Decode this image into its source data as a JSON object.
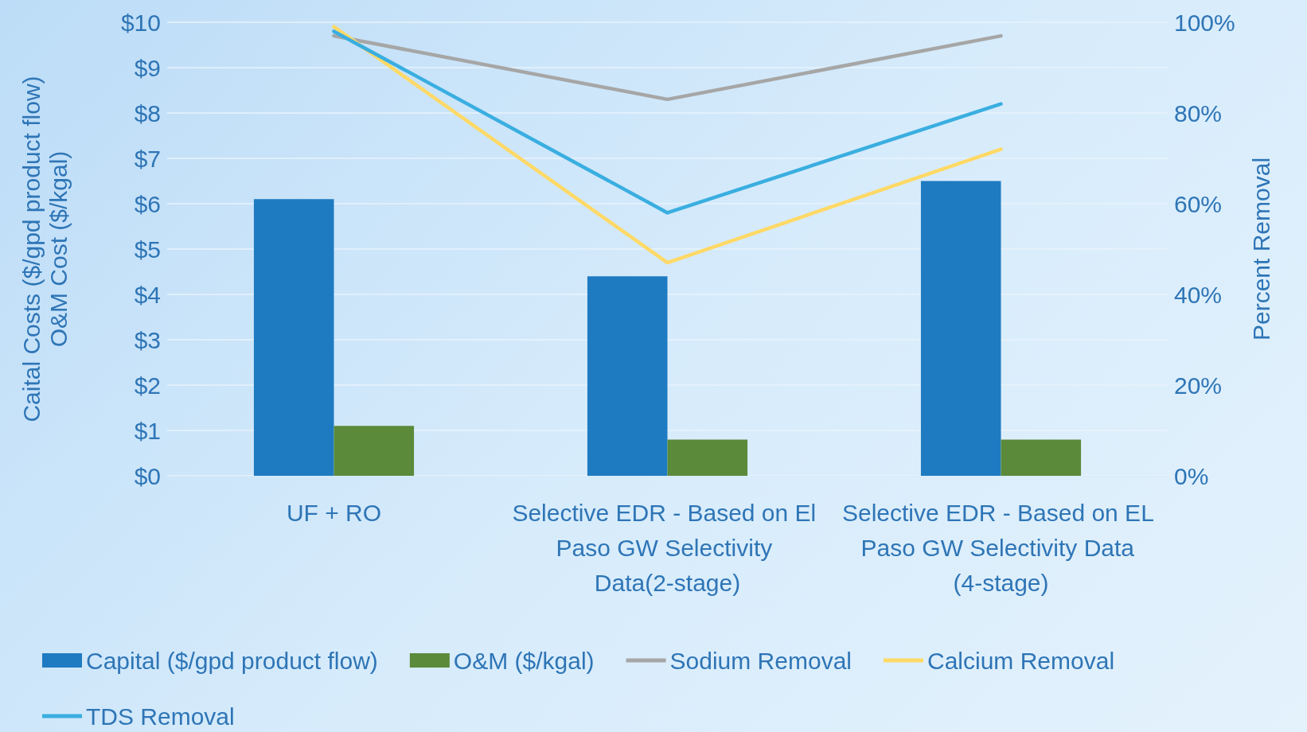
{
  "chart_data": {
    "type": "bar",
    "categories": [
      "UF + RO",
      "Selective EDR - Based on El Paso GW Selectivity Data(2-stage)",
      "Selective EDR - Based on EL Paso GW Selectivity Data (4-stage)"
    ],
    "series": [
      {
        "name": "Capital ($/gpd product flow)",
        "color": "#1f7bc1",
        "values": [
          6.1,
          4.4,
          6.5
        ]
      },
      {
        "name": "O&M ($/kgal)",
        "color": "#5b8a3a",
        "values": [
          1.1,
          0.8,
          0.8
        ]
      },
      {
        "name": "Sodium Removal",
        "type": "line",
        "axis": "y2",
        "color": "#a6a6a6",
        "values": [
          97,
          83,
          97
        ]
      },
      {
        "name": "Calcium Removal",
        "type": "line",
        "axis": "y2",
        "color": "#ffd966",
        "values": [
          99,
          47,
          72
        ]
      },
      {
        "name": "TDS Removal",
        "type": "line",
        "axis": "y2",
        "color": "#3aaee0",
        "values": [
          98,
          58,
          82
        ]
      }
    ],
    "ylabel": "Caital Costs ($/gpd product flow)\nO&M Cost ($/kgal)",
    "y2label": "Percent Removal",
    "ylim": [
      0,
      10
    ],
    "yticks": [
      {
        "value": 0,
        "label": "$0"
      },
      {
        "value": 1,
        "label": "$1"
      },
      {
        "value": 2,
        "label": "$2"
      },
      {
        "value": 3,
        "label": "$3"
      },
      {
        "value": 4,
        "label": "$4"
      },
      {
        "value": 5,
        "label": "$5"
      },
      {
        "value": 6,
        "label": "$6"
      },
      {
        "value": 7,
        "label": "$7"
      },
      {
        "value": 8,
        "label": "$8"
      },
      {
        "value": 9,
        "label": "$9"
      },
      {
        "value": 10,
        "label": "$10"
      }
    ],
    "y2lim": [
      0,
      100
    ],
    "y2ticks": [
      {
        "value": 0,
        "label": "0%"
      },
      {
        "value": 20,
        "label": "20%"
      },
      {
        "value": 40,
        "label": "40%"
      },
      {
        "value": 60,
        "label": "60%"
      },
      {
        "value": 80,
        "label": "80%"
      },
      {
        "value": 100,
        "label": "100%"
      }
    ],
    "grid": "y",
    "legend": "bottom",
    "marker": "none"
  }
}
